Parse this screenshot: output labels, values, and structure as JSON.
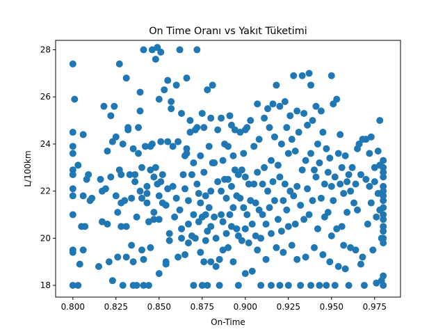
{
  "chart_data": {
    "type": "scatter",
    "title": "On Time Oranı vs Yakıt Tüketimi",
    "xlabel": "On-Time",
    "ylabel": "L/100km",
    "xlim": [
      0.79,
      0.99
    ],
    "ylim": [
      17.5,
      28.4
    ],
    "xticks": [
      "0.800",
      "0.825",
      "0.850",
      "0.875",
      "0.900",
      "0.925",
      "0.950",
      "0.975"
    ],
    "yticks": [
      "18",
      "20",
      "22",
      "24",
      "26",
      "28"
    ],
    "grid": false,
    "legend": "none",
    "marker_color": "#1f77b4",
    "points": [
      [
        0.8,
        27.4
      ],
      [
        0.8,
        24.5
      ],
      [
        0.8,
        23.9
      ],
      [
        0.8,
        23.6
      ],
      [
        0.8,
        22.9
      ],
      [
        0.8,
        22.7
      ],
      [
        0.8,
        22.1
      ],
      [
        0.8,
        21.8
      ],
      [
        0.8,
        21.0
      ],
      [
        0.8,
        19.5
      ],
      [
        0.8,
        19.4
      ],
      [
        0.8,
        18.0
      ],
      [
        0.801,
        25.9
      ],
      [
        0.803,
        23.1
      ],
      [
        0.803,
        18.0
      ],
      [
        0.804,
        18.9
      ],
      [
        0.805,
        20.5
      ],
      [
        0.806,
        21.8
      ],
      [
        0.806,
        24.4
      ],
      [
        0.806,
        19.5
      ],
      [
        0.807,
        20.5
      ],
      [
        0.808,
        22.5
      ],
      [
        0.809,
        22.7
      ],
      [
        0.81,
        21.6
      ],
      [
        0.811,
        21.7
      ],
      [
        0.815,
        18.8
      ],
      [
        0.816,
        22.5
      ],
      [
        0.817,
        22.0
      ],
      [
        0.817,
        20.7
      ],
      [
        0.818,
        25.6
      ],
      [
        0.819,
        22.1
      ],
      [
        0.82,
        20.6
      ],
      [
        0.82,
        23.7
      ],
      [
        0.821,
        19.0
      ],
      [
        0.822,
        22.6
      ],
      [
        0.822,
        25.2
      ],
      [
        0.823,
        18.2
      ],
      [
        0.823,
        24.1
      ],
      [
        0.824,
        25.6
      ],
      [
        0.825,
        24.3
      ],
      [
        0.825,
        21.8
      ],
      [
        0.826,
        19.2
      ],
      [
        0.826,
        21.1
      ],
      [
        0.827,
        27.4
      ],
      [
        0.827,
        22.9
      ],
      [
        0.828,
        22.7
      ],
      [
        0.828,
        21.5
      ],
      [
        0.828,
        20.5
      ],
      [
        0.829,
        18.0
      ],
      [
        0.829,
        24.0
      ],
      [
        0.83,
        21.6
      ],
      [
        0.831,
        26.8
      ],
      [
        0.831,
        20.5
      ],
      [
        0.831,
        19.2
      ],
      [
        0.832,
        24.6
      ],
      [
        0.832,
        24.7
      ],
      [
        0.833,
        22.7
      ],
      [
        0.834,
        19.7
      ],
      [
        0.834,
        21.7
      ],
      [
        0.835,
        23.8
      ],
      [
        0.835,
        19.0
      ],
      [
        0.835,
        18.0
      ],
      [
        0.836,
        22.4
      ],
      [
        0.836,
        22.7
      ],
      [
        0.837,
        20.9
      ],
      [
        0.837,
        18.0
      ],
      [
        0.838,
        24.7
      ],
      [
        0.838,
        23.6
      ],
      [
        0.839,
        22.0
      ],
      [
        0.839,
        26.2
      ],
      [
        0.839,
        25.4
      ],
      [
        0.84,
        23.0
      ],
      [
        0.84,
        21.7
      ],
      [
        0.84,
        19.5
      ],
      [
        0.841,
        19.1
      ],
      [
        0.841,
        18.0
      ],
      [
        0.841,
        28.0
      ],
      [
        0.842,
        23.9
      ],
      [
        0.843,
        21.9
      ],
      [
        0.843,
        21.5
      ],
      [
        0.843,
        22.2
      ],
      [
        0.844,
        20.7
      ],
      [
        0.844,
        18.0
      ],
      [
        0.845,
        22.9
      ],
      [
        0.845,
        19.6
      ],
      [
        0.845,
        23.9
      ],
      [
        0.846,
        28.0
      ],
      [
        0.846,
        24.0
      ],
      [
        0.847,
        21.1
      ],
      [
        0.847,
        20.8
      ],
      [
        0.847,
        22.6
      ],
      [
        0.848,
        27.6
      ],
      [
        0.848,
        23.0
      ],
      [
        0.849,
        28.1
      ],
      [
        0.849,
        22.3
      ],
      [
        0.85,
        25.9
      ],
      [
        0.85,
        21.8
      ],
      [
        0.85,
        20.8
      ],
      [
        0.85,
        18.5
      ],
      [
        0.851,
        27.9
      ],
      [
        0.851,
        22.4
      ],
      [
        0.851,
        24.1
      ],
      [
        0.852,
        22.7
      ],
      [
        0.852,
        21.5
      ],
      [
        0.853,
        26.3
      ],
      [
        0.854,
        21.4
      ],
      [
        0.854,
        19.0
      ],
      [
        0.854,
        18.9
      ],
      [
        0.855,
        26.7
      ],
      [
        0.855,
        22.1
      ],
      [
        0.855,
        24.1
      ],
      [
        0.856,
        19.9
      ],
      [
        0.856,
        20.2
      ],
      [
        0.857,
        25.8
      ],
      [
        0.857,
        25.5
      ],
      [
        0.858,
        23.9
      ],
      [
        0.858,
        22.2
      ],
      [
        0.859,
        20.9
      ],
      [
        0.86,
        26.5
      ],
      [
        0.86,
        21.7
      ],
      [
        0.861,
        24.1
      ],
      [
        0.861,
        19.2
      ],
      [
        0.862,
        28.0
      ],
      [
        0.862,
        21.2
      ],
      [
        0.863,
        25.3
      ],
      [
        0.863,
        20.0
      ],
      [
        0.863,
        20.4
      ],
      [
        0.864,
        22.7
      ],
      [
        0.865,
        23.5
      ],
      [
        0.865,
        22.1
      ],
      [
        0.865,
        19.3
      ],
      [
        0.866,
        26.8
      ],
      [
        0.866,
        23.8
      ],
      [
        0.866,
        23.6
      ],
      [
        0.867,
        21.6
      ],
      [
        0.867,
        20.6
      ],
      [
        0.867,
        19.8
      ],
      [
        0.868,
        24.5
      ],
      [
        0.868,
        25.0
      ],
      [
        0.869,
        22.7
      ],
      [
        0.869,
        20.1
      ],
      [
        0.87,
        23.2
      ],
      [
        0.87,
        21.0
      ],
      [
        0.87,
        18.0
      ],
      [
        0.871,
        24.6
      ],
      [
        0.871,
        20.0
      ],
      [
        0.872,
        28.0
      ],
      [
        0.872,
        24.7
      ],
      [
        0.872,
        22.3
      ],
      [
        0.873,
        21.9
      ],
      [
        0.873,
        20.7
      ],
      [
        0.874,
        23.5
      ],
      [
        0.874,
        21.5
      ],
      [
        0.874,
        19.4
      ],
      [
        0.875,
        25.3
      ],
      [
        0.875,
        20.9
      ],
      [
        0.875,
        18.0
      ],
      [
        0.876,
        24.7
      ],
      [
        0.876,
        22.8
      ],
      [
        0.876,
        19.0
      ],
      [
        0.877,
        21.8
      ],
      [
        0.877,
        21.0
      ],
      [
        0.877,
        19.9
      ],
      [
        0.878,
        26.3
      ],
      [
        0.878,
        20.3
      ],
      [
        0.878,
        18.0
      ],
      [
        0.879,
        23.9
      ],
      [
        0.879,
        21.3
      ],
      [
        0.88,
        25.1
      ],
      [
        0.88,
        22.0
      ],
      [
        0.88,
        20.5
      ],
      [
        0.88,
        19.0
      ],
      [
        0.881,
        26.5
      ],
      [
        0.881,
        23.2
      ],
      [
        0.882,
        23.2
      ],
      [
        0.882,
        20.9
      ],
      [
        0.883,
        20.0
      ],
      [
        0.883,
        18.8
      ],
      [
        0.884,
        24.6
      ],
      [
        0.884,
        22.4
      ],
      [
        0.885,
        19.1
      ],
      [
        0.885,
        18.0
      ],
      [
        0.886,
        25.1
      ],
      [
        0.886,
        22.0
      ],
      [
        0.886,
        21.0
      ],
      [
        0.887,
        23.3
      ],
      [
        0.887,
        20.7
      ],
      [
        0.887,
        19.5
      ],
      [
        0.888,
        24.0
      ],
      [
        0.888,
        22.5
      ],
      [
        0.889,
        21.7
      ],
      [
        0.889,
        20.2
      ],
      [
        0.89,
        23.9
      ],
      [
        0.89,
        22.5
      ],
      [
        0.89,
        19.6
      ],
      [
        0.891,
        25.2
      ],
      [
        0.891,
        21.0
      ],
      [
        0.892,
        24.8
      ],
      [
        0.892,
        22.2
      ],
      [
        0.892,
        20.5
      ],
      [
        0.893,
        23.5
      ],
      [
        0.893,
        21.3
      ],
      [
        0.893,
        19.0
      ],
      [
        0.894,
        24.6
      ],
      [
        0.894,
        22.9
      ],
      [
        0.895,
        21.8
      ],
      [
        0.895,
        20.4
      ],
      [
        0.896,
        22.7
      ],
      [
        0.896,
        20.1
      ],
      [
        0.896,
        18.0
      ],
      [
        0.897,
        24.5
      ],
      [
        0.897,
        21.7
      ],
      [
        0.898,
        22.9
      ],
      [
        0.898,
        19.9
      ],
      [
        0.899,
        23.6
      ],
      [
        0.899,
        21.3
      ],
      [
        0.9,
        24.6
      ],
      [
        0.9,
        22.6
      ],
      [
        0.9,
        20.4
      ],
      [
        0.9,
        18.5
      ],
      [
        0.901,
        24.7
      ],
      [
        0.901,
        21.0
      ],
      [
        0.902,
        22.3
      ],
      [
        0.902,
        19.8
      ],
      [
        0.903,
        25.0
      ],
      [
        0.903,
        21.6
      ],
      [
        0.904,
        20.6
      ],
      [
        0.904,
        18.6
      ],
      [
        0.905,
        22.3
      ],
      [
        0.905,
        23.9
      ],
      [
        0.906,
        21.5
      ],
      [
        0.906,
        20.1
      ],
      [
        0.907,
        25.7
      ],
      [
        0.907,
        22.8
      ],
      [
        0.907,
        19.5
      ],
      [
        0.908,
        24.2
      ],
      [
        0.908,
        21.2
      ],
      [
        0.909,
        20.0
      ],
      [
        0.909,
        18.0
      ],
      [
        0.91,
        22.3
      ],
      [
        0.91,
        21.0
      ],
      [
        0.911,
        25.1
      ],
      [
        0.911,
        23.0
      ],
      [
        0.912,
        20.6
      ],
      [
        0.912,
        19.1
      ],
      [
        0.913,
        22.0
      ],
      [
        0.913,
        25.5
      ],
      [
        0.914,
        24.7
      ],
      [
        0.914,
        21.3
      ],
      [
        0.915,
        23.3
      ],
      [
        0.915,
        20.2
      ],
      [
        0.915,
        18.0
      ],
      [
        0.916,
        25.7
      ],
      [
        0.916,
        22.4
      ],
      [
        0.917,
        24.3
      ],
      [
        0.917,
        21.6
      ],
      [
        0.918,
        26.5
      ],
      [
        0.918,
        19.6
      ],
      [
        0.919,
        23.1
      ],
      [
        0.919,
        20.8
      ],
      [
        0.92,
        25.6
      ],
      [
        0.92,
        22.6
      ],
      [
        0.92,
        18.0
      ],
      [
        0.921,
        24.0
      ],
      [
        0.921,
        20.3
      ],
      [
        0.922,
        21.6
      ],
      [
        0.922,
        19.4
      ],
      [
        0.923,
        25.8
      ],
      [
        0.923,
        22.3
      ],
      [
        0.924,
        24.7
      ],
      [
        0.924,
        21.2
      ],
      [
        0.925,
        23.6
      ],
      [
        0.925,
        20.5
      ],
      [
        0.925,
        18.0
      ],
      [
        0.926,
        25.2
      ],
      [
        0.926,
        22.0
      ],
      [
        0.927,
        24.2
      ],
      [
        0.927,
        19.7
      ],
      [
        0.928,
        26.9
      ],
      [
        0.928,
        21.8
      ],
      [
        0.929,
        23.7
      ],
      [
        0.929,
        20.6
      ],
      [
        0.93,
        25.4
      ],
      [
        0.93,
        22.2
      ],
      [
        0.93,
        19.1
      ],
      [
        0.931,
        24.5
      ],
      [
        0.932,
        21.4
      ],
      [
        0.932,
        18.0
      ],
      [
        0.933,
        26.9
      ],
      [
        0.933,
        22.9
      ],
      [
        0.934,
        25.3
      ],
      [
        0.934,
        20.8
      ],
      [
        0.935,
        23.3
      ],
      [
        0.935,
        19.2
      ],
      [
        0.936,
        24.8
      ],
      [
        0.936,
        22.1
      ],
      [
        0.937,
        27.0
      ],
      [
        0.937,
        21.0
      ],
      [
        0.938,
        26.5
      ],
      [
        0.938,
        23.6
      ],
      [
        0.938,
        18.0
      ],
      [
        0.939,
        25.0
      ],
      [
        0.939,
        21.6
      ],
      [
        0.94,
        22.9
      ],
      [
        0.94,
        19.6
      ],
      [
        0.941,
        25.6
      ],
      [
        0.941,
        22.6
      ],
      [
        0.942,
        24.0
      ],
      [
        0.942,
        20.4
      ],
      [
        0.943,
        23.2
      ],
      [
        0.943,
        18.0
      ],
      [
        0.944,
        25.4
      ],
      [
        0.944,
        21.7
      ],
      [
        0.945,
        24.5
      ],
      [
        0.945,
        19.3
      ],
      [
        0.946,
        22.3
      ],
      [
        0.946,
        20.9
      ],
      [
        0.947,
        23.8
      ],
      [
        0.947,
        18.0
      ],
      [
        0.948,
        22.8
      ],
      [
        0.948,
        21.1
      ],
      [
        0.949,
        23.4
      ],
      [
        0.949,
        19.0
      ],
      [
        0.95,
        26.9
      ],
      [
        0.95,
        22.2
      ],
      [
        0.95,
        20.1
      ],
      [
        0.951,
        25.7
      ],
      [
        0.951,
        21.6
      ],
      [
        0.952,
        22.6
      ],
      [
        0.952,
        18.0
      ],
      [
        0.953,
        25.9
      ],
      [
        0.953,
        20.4
      ],
      [
        0.954,
        23.6
      ],
      [
        0.954,
        18.8
      ],
      [
        0.955,
        24.4
      ],
      [
        0.955,
        22.3
      ],
      [
        0.956,
        23.0
      ],
      [
        0.956,
        20.5
      ],
      [
        0.957,
        21.9
      ],
      [
        0.957,
        19.7
      ],
      [
        0.958,
        23.5
      ],
      [
        0.958,
        18.7
      ],
      [
        0.959,
        22.4
      ],
      [
        0.959,
        21.1
      ],
      [
        0.96,
        22.7
      ],
      [
        0.96,
        18.0
      ],
      [
        0.961,
        22.0
      ],
      [
        0.961,
        19.6
      ],
      [
        0.962,
        23.0
      ],
      [
        0.963,
        21.5
      ],
      [
        0.964,
        22.3
      ],
      [
        0.964,
        19.5
      ],
      [
        0.965,
        23.8
      ],
      [
        0.965,
        21.2
      ],
      [
        0.966,
        24.0
      ],
      [
        0.967,
        22.7
      ],
      [
        0.967,
        18.9
      ],
      [
        0.968,
        24.2
      ],
      [
        0.968,
        19.2
      ],
      [
        0.969,
        18.0
      ],
      [
        0.97,
        24.2
      ],
      [
        0.97,
        22.5
      ],
      [
        0.971,
        20.6
      ],
      [
        0.972,
        23.6
      ],
      [
        0.972,
        22.2
      ],
      [
        0.973,
        24.3
      ],
      [
        0.973,
        21.5
      ],
      [
        0.974,
        19.5
      ],
      [
        0.975,
        23.0
      ],
      [
        0.975,
        22.4
      ],
      [
        0.976,
        20.9
      ],
      [
        0.976,
        18.1
      ],
      [
        0.977,
        23.7
      ],
      [
        0.977,
        21.9
      ],
      [
        0.978,
        25.0
      ],
      [
        0.978,
        23.1
      ],
      [
        0.978,
        21.2
      ],
      [
        0.979,
        20.0
      ],
      [
        0.979,
        18.2
      ],
      [
        0.98,
        23.3
      ],
      [
        0.98,
        23.0
      ],
      [
        0.98,
        22.8
      ],
      [
        0.98,
        22.6
      ],
      [
        0.98,
        22.2
      ],
      [
        0.98,
        22.0
      ],
      [
        0.98,
        21.8
      ],
      [
        0.98,
        21.6
      ],
      [
        0.98,
        21.3
      ],
      [
        0.98,
        21.0
      ],
      [
        0.98,
        20.8
      ],
      [
        0.98,
        20.5
      ],
      [
        0.98,
        20.3
      ],
      [
        0.98,
        20.0
      ],
      [
        0.98,
        19.8
      ],
      [
        0.98,
        18.4
      ],
      [
        0.98,
        18.0
      ]
    ]
  }
}
